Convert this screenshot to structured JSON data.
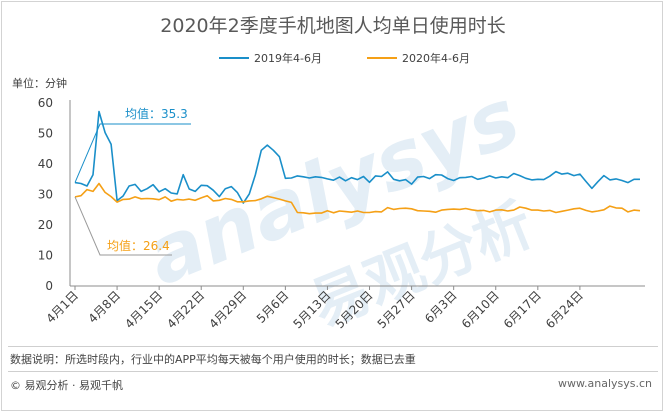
{
  "chart_data": {
    "type": "line",
    "title": "2020年2季度手机地图人均单日使用时长",
    "y_unit_label": "单位：分钟",
    "ylim": [
      0,
      60
    ],
    "y_ticks": [
      0,
      10,
      20,
      30,
      40,
      50,
      60
    ],
    "grid": false,
    "legend_position": "top",
    "x_tick_labels": [
      "4月1日",
      "4月8日",
      "4月15日",
      "4月22日",
      "4月29日",
      "5月6日",
      "5月13日",
      "5月20日",
      "5月27日",
      "6月3日",
      "6月10日",
      "6月17日",
      "6月24日"
    ],
    "series": [
      {
        "name": "2019年4-6月",
        "color": "#1a8fc9",
        "values": [
          33.9,
          33.6,
          32.8,
          36.5,
          57.2,
          50.3,
          46.5,
          28.0,
          29.5,
          32.8,
          33.3,
          31.0,
          31.9,
          33.2,
          30.9,
          31.9,
          30.5,
          30.2,
          36.5,
          31.8,
          31.0,
          33.0,
          32.9,
          31.4,
          29.3,
          31.9,
          32.6,
          30.7,
          27.2,
          30.2,
          36.4,
          44.5,
          46.2,
          44.5,
          42.4,
          35.3,
          35.4,
          36.1,
          35.8,
          35.4,
          35.8,
          35.6,
          35.1,
          34.7,
          35.7,
          34.5,
          35.5,
          34.9,
          35.9,
          34.0,
          36.1,
          35.9,
          37.4,
          35.0,
          34.5,
          34.9,
          33.4,
          35.7,
          35.9,
          35.2,
          36.5,
          36.4,
          35.2,
          34.6,
          35.5,
          35.6,
          35.9,
          35.0,
          35.4,
          36.1,
          35.4,
          35.8,
          35.5,
          36.9,
          36.2,
          35.3,
          34.8,
          35.0,
          34.9,
          36.0,
          37.5,
          36.7,
          37.0,
          36.2,
          36.7,
          34.3,
          32.0,
          34.2,
          36.2,
          34.8,
          35.1,
          34.6,
          33.9,
          35.0,
          35.0
        ]
      },
      {
        "name": "2020年4-6月",
        "color": "#f5a016",
        "values": [
          29.2,
          29.6,
          31.6,
          31.0,
          33.6,
          30.7,
          29.3,
          27.5,
          28.4,
          28.5,
          29.2,
          28.6,
          28.7,
          28.6,
          28.3,
          29.2,
          27.8,
          28.4,
          28.2,
          28.5,
          28.1,
          28.9,
          29.6,
          27.9,
          28.1,
          28.7,
          28.4,
          27.6,
          27.6,
          27.9,
          28.0,
          28.6,
          29.4,
          29.0,
          28.5,
          27.9,
          27.4,
          24.1,
          24.0,
          23.7,
          23.9,
          23.9,
          24.7,
          24.0,
          24.6,
          24.4,
          24.2,
          24.6,
          24.1,
          24.1,
          24.4,
          24.3,
          25.7,
          25.1,
          25.4,
          25.5,
          25.3,
          24.7,
          24.6,
          24.5,
          24.2,
          24.9,
          25.1,
          25.2,
          25.1,
          25.4,
          25.0,
          24.7,
          24.8,
          24.3,
          24.9,
          25.0,
          24.6,
          24.9,
          25.9,
          25.5,
          24.9,
          24.9,
          24.6,
          24.8,
          24.1,
          24.5,
          24.9,
          25.3,
          25.5,
          24.8,
          24.3,
          24.6,
          25.0,
          26.2,
          25.6,
          25.5,
          24.3,
          24.9,
          24.7
        ]
      }
    ],
    "annotations": [
      {
        "text": "均值：35.3",
        "value": 35.3,
        "series": 0
      },
      {
        "text": "均值：26.4",
        "value": 26.4,
        "series": 1
      }
    ]
  },
  "footer": {
    "note": "数据说明：所选时段内，行业中的APP平均每天被每个用户使用的时长；数据已去重",
    "source": "© 易观分析 · 易观千帆",
    "url": "www.analysys.cn"
  },
  "watermark": {
    "latin": "analysys",
    "chinese": "易观分析"
  },
  "colors": {
    "title": "#595959",
    "axis": "#8c8c8c",
    "text": "#404040",
    "watermark": "#e4eef6"
  }
}
